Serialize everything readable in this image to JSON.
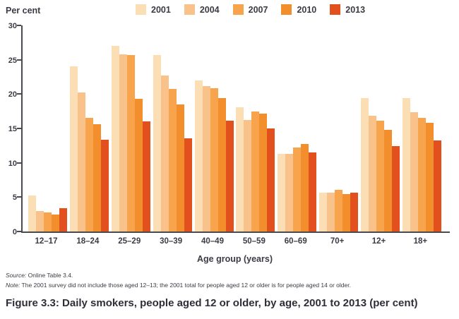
{
  "header": {
    "y_axis_unit": "Per cent"
  },
  "chart_data": {
    "type": "bar",
    "title": "Figure 3.3: Daily smokers, people aged 12 or older, by age, 2001 to 2013 (per cent)",
    "xlabel": "Age group (years)",
    "ylabel": "Per cent",
    "ylim": [
      0,
      30
    ],
    "yticks": [
      0,
      5,
      10,
      15,
      20,
      25,
      30
    ],
    "grid": false,
    "legend_position": "top",
    "categories": [
      "12–17",
      "18–24",
      "25–29",
      "30–39",
      "40–49",
      "50–59",
      "60–69",
      "70+",
      "12+",
      "18+"
    ],
    "series": [
      {
        "name": "2001",
        "color": "#FBDEB4",
        "values": [
          5.2,
          24.0,
          27.0,
          25.7,
          22.0,
          18.1,
          11.3,
          5.7,
          19.4,
          19.4
        ]
      },
      {
        "name": "2004",
        "color": "#F9C28A",
        "values": [
          3.0,
          20.2,
          25.8,
          22.7,
          21.2,
          16.2,
          11.3,
          5.7,
          16.9,
          17.4
        ]
      },
      {
        "name": "2007",
        "color": "#F7A44C",
        "values": [
          2.8,
          16.5,
          25.7,
          20.8,
          20.9,
          17.5,
          12.2,
          6.1,
          16.1,
          16.5
        ]
      },
      {
        "name": "2010",
        "color": "#F28E2B",
        "values": [
          2.5,
          15.6,
          19.3,
          18.5,
          19.4,
          17.2,
          12.7,
          5.5,
          14.8,
          15.8
        ]
      },
      {
        "name": "2013",
        "color": "#E2511D",
        "values": [
          3.4,
          13.4,
          16.0,
          13.6,
          16.1,
          15.0,
          11.5,
          5.7,
          12.4,
          13.3
        ]
      }
    ]
  },
  "footer": {
    "source_label": "Source:",
    "source_text": " Online Table 3.4.",
    "note_label": "Note:",
    "note_text": " The 2001 survey did not include those aged 12–13; the 2001 total for people aged 12 or older is for people aged 14 or older.",
    "caption": "Figure 3.3: Daily smokers, people aged 12 or older, by age, 2001 to 2013 (per cent)"
  },
  "colors": {
    "axis": "#4A4A50",
    "text": "#3B3B44",
    "caption": "#2E2E38"
  }
}
